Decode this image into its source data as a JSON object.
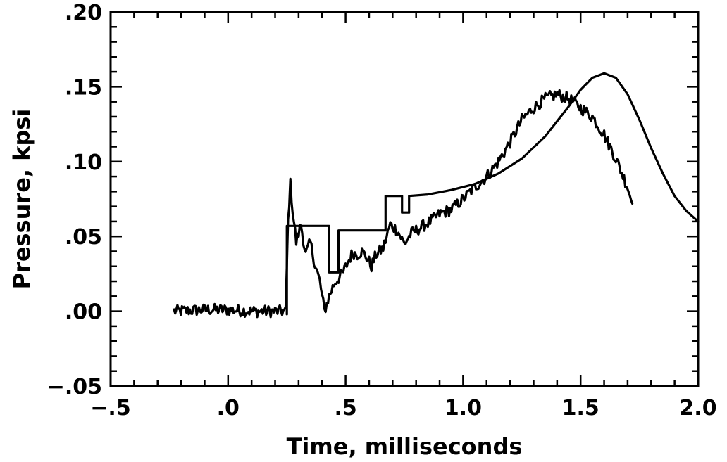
{
  "chart_data": {
    "type": "line",
    "title": "",
    "xlabel": "Time, milliseconds",
    "ylabel": "Pressure,  kpsi",
    "xlim": [
      -0.5,
      2.0
    ],
    "ylim": [
      -0.05,
      0.2
    ],
    "x_ticks": [
      -0.5,
      0.0,
      0.5,
      1.0,
      1.5,
      2.0
    ],
    "x_tick_labels": [
      "−.5",
      ".0",
      ".5",
      "1.0",
      "1.5",
      "2.0"
    ],
    "x_minor_step": 0.1,
    "y_ticks": [
      -0.05,
      0.0,
      0.05,
      0.1,
      0.15,
      0.2
    ],
    "y_tick_labels": [
      "−.05",
      ".00",
      ".05",
      ".10",
      ".15",
      ".20"
    ],
    "y_minor_step": 0.01,
    "grid": false,
    "legend": "none",
    "series": [
      {
        "style": "smooth",
        "color": "#000000",
        "x": [
          0.25,
          0.25,
          0.43,
          0.43,
          0.47,
          0.47,
          0.67,
          0.67,
          0.74,
          0.74,
          0.77,
          0.77,
          0.85,
          0.95,
          1.05,
          1.15,
          1.25,
          1.35,
          1.45,
          1.5,
          1.55,
          1.6,
          1.65,
          1.7,
          1.75,
          1.8,
          1.85,
          1.9,
          1.95,
          2.0
        ],
        "y": [
          -0.002,
          0.057,
          0.057,
          0.026,
          0.026,
          0.054,
          0.054,
          0.077,
          0.077,
          0.066,
          0.066,
          0.077,
          0.078,
          0.081,
          0.085,
          0.092,
          0.102,
          0.117,
          0.137,
          0.148,
          0.156,
          0.159,
          0.156,
          0.145,
          0.128,
          0.109,
          0.092,
          0.077,
          0.067,
          0.06
        ]
      },
      {
        "style": "noisy",
        "color": "#000000",
        "x": [
          -0.23,
          -0.1,
          0.0,
          0.1,
          0.2,
          0.245,
          0.255,
          0.265,
          0.275,
          0.29,
          0.31,
          0.33,
          0.35,
          0.37,
          0.39,
          0.41,
          0.43,
          0.45,
          0.47,
          0.49,
          0.51,
          0.53,
          0.55,
          0.57,
          0.59,
          0.61,
          0.63,
          0.66,
          0.69,
          0.72,
          0.75,
          0.78,
          0.82,
          0.86,
          0.9,
          0.95,
          1.0,
          1.05,
          1.1,
          1.15,
          1.2,
          1.25,
          1.3,
          1.35,
          1.4,
          1.45,
          1.5,
          1.55,
          1.6,
          1.65,
          1.7,
          1.72
        ],
        "y": [
          0.0,
          0.001,
          0.001,
          0.0,
          0.0,
          0.0,
          0.06,
          0.085,
          0.067,
          0.046,
          0.058,
          0.038,
          0.046,
          0.031,
          0.02,
          0.0,
          0.01,
          0.018,
          0.022,
          0.026,
          0.033,
          0.039,
          0.038,
          0.04,
          0.036,
          0.03,
          0.038,
          0.042,
          0.058,
          0.054,
          0.045,
          0.052,
          0.056,
          0.06,
          0.065,
          0.068,
          0.075,
          0.083,
          0.09,
          0.1,
          0.113,
          0.128,
          0.136,
          0.142,
          0.145,
          0.142,
          0.136,
          0.13,
          0.118,
          0.102,
          0.083,
          0.072
        ],
        "noise_amplitude": 0.004
      }
    ]
  }
}
